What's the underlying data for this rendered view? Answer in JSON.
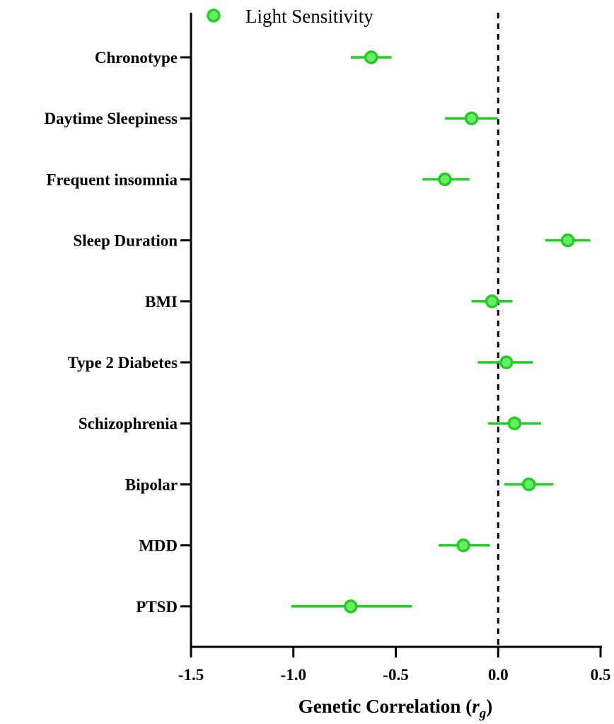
{
  "chart_data": {
    "type": "scatter",
    "subtype": "forest-plot",
    "legend": {
      "position": "top",
      "entries": [
        {
          "name": "Light Sensitivity",
          "color": "#22cc22",
          "fill": "#66ee66",
          "marker": "circle"
        }
      ]
    },
    "xlabel": "Genetic Correlation (",
    "xlabel_symbol": "r",
    "xlabel_subscript": "g",
    "xlabel_close": ")",
    "xlim": [
      -1.5,
      0.5
    ],
    "xticks": [
      -1.5,
      -1.0,
      -0.5,
      0.0,
      0.5
    ],
    "xtick_labels": [
      "-1.5",
      "-1.0",
      "-0.5",
      "0.0",
      "0.5"
    ],
    "reference_line": {
      "x": 0,
      "style": "dashed"
    },
    "grid": false,
    "categories": [
      "Chronotype",
      "Daytime Sleepiness",
      "Frequent insomnia",
      "Sleep Duration",
      "BMI",
      "Type 2 Diabetes",
      "Schizophrenia",
      "Bipolar",
      "MDD",
      "PTSD"
    ],
    "series": [
      {
        "name": "Light Sensitivity",
        "estimates": [
          -0.62,
          -0.13,
          -0.26,
          0.34,
          -0.03,
          0.04,
          0.08,
          0.15,
          -0.17,
          -0.72
        ],
        "ci_low": [
          -0.72,
          -0.26,
          -0.37,
          0.23,
          -0.13,
          -0.1,
          -0.05,
          0.03,
          -0.29,
          -1.01
        ],
        "ci_high": [
          -0.52,
          0.0,
          -0.14,
          0.45,
          0.07,
          0.17,
          0.21,
          0.27,
          -0.04,
          -0.42
        ]
      }
    ]
  }
}
